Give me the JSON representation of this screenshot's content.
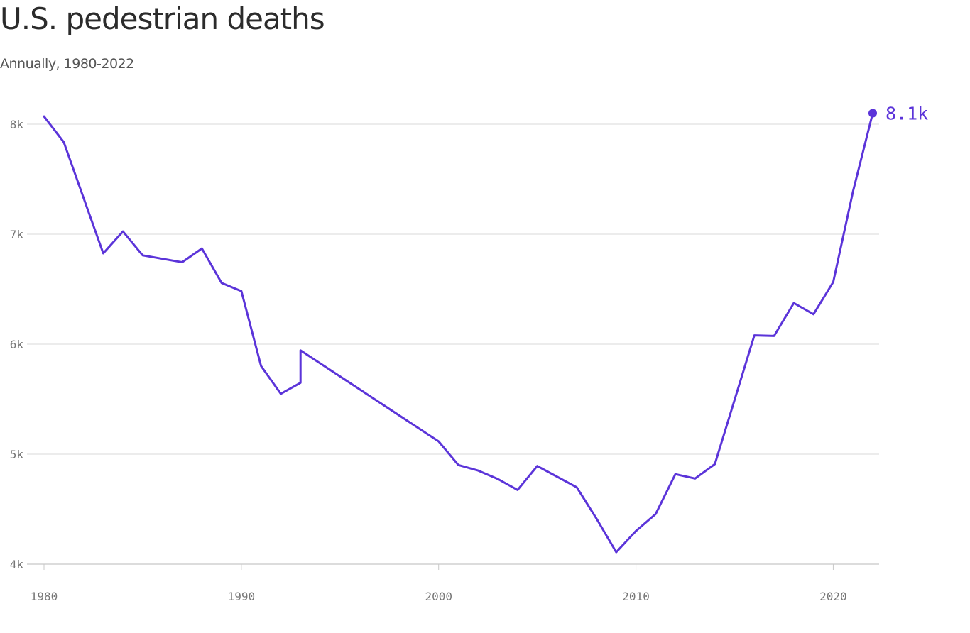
{
  "chart_data": {
    "type": "line",
    "title": "U.S. pedestrian deaths",
    "subtitle": "Annually, 1980-2022",
    "xlabel": "",
    "ylabel": "",
    "xlim": [
      1980,
      2022
    ],
    "ylim": [
      4000,
      8100
    ],
    "x_ticks": [
      1980,
      1990,
      2000,
      2010,
      2020
    ],
    "y_ticks": [
      {
        "value": 4000,
        "label": "4k"
      },
      {
        "value": 5000,
        "label": "5k"
      },
      {
        "value": 6000,
        "label": "6k"
      },
      {
        "value": 7000,
        "label": "7k"
      },
      {
        "value": 8000,
        "label": "8k"
      }
    ],
    "grid": true,
    "series": [
      {
        "color": "#5b34d9",
        "points": [
          {
            "x": 1980,
            "y": 8070
          },
          {
            "x": 1981,
            "y": 7837
          },
          {
            "x": 1983,
            "y": 6826
          },
          {
            "x": 1984,
            "y": 7025
          },
          {
            "x": 1985,
            "y": 6808
          },
          {
            "x": 1987,
            "y": 6745
          },
          {
            "x": 1988,
            "y": 6870
          },
          {
            "x": 1989,
            "y": 6556
          },
          {
            "x": 1990,
            "y": 6482
          },
          {
            "x": 1991,
            "y": 5801
          },
          {
            "x": 1992,
            "y": 5549
          },
          {
            "x": 1993,
            "y": 5649
          },
          {
            "x": 1993,
            "y": 5943
          },
          {
            "x": 2000,
            "y": 5116
          },
          {
            "x": 2001,
            "y": 4901
          },
          {
            "x": 2002,
            "y": 4851
          },
          {
            "x": 2003,
            "y": 4774
          },
          {
            "x": 2004,
            "y": 4675
          },
          {
            "x": 2005,
            "y": 4892
          },
          {
            "x": 2007,
            "y": 4699
          },
          {
            "x": 2008,
            "y": 4414
          },
          {
            "x": 2009,
            "y": 4109
          },
          {
            "x": 2010,
            "y": 4302
          },
          {
            "x": 2011,
            "y": 4457
          },
          {
            "x": 2012,
            "y": 4818
          },
          {
            "x": 2013,
            "y": 4779
          },
          {
            "x": 2014,
            "y": 4910
          },
          {
            "x": 2015,
            "y": 5494
          },
          {
            "x": 2016,
            "y": 6080
          },
          {
            "x": 2017,
            "y": 6075
          },
          {
            "x": 2018,
            "y": 6374
          },
          {
            "x": 2019,
            "y": 6272
          },
          {
            "x": 2020,
            "y": 6565
          },
          {
            "x": 2021,
            "y": 7388
          },
          {
            "x": 2022,
            "y": 8100
          }
        ]
      }
    ],
    "end_label": "8.1k"
  }
}
